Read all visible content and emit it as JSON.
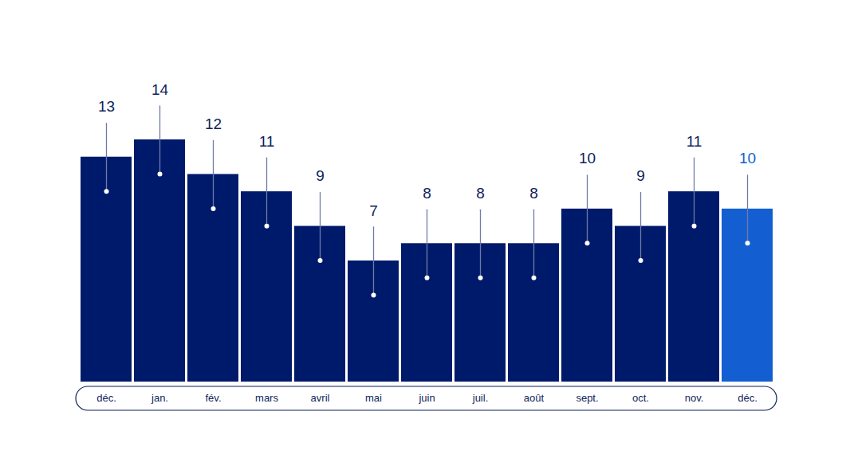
{
  "chart_data": {
    "type": "bar",
    "categories": [
      "déc.",
      "jan.",
      "fév.",
      "mars",
      "avril",
      "mai",
      "juin",
      "juil.",
      "août",
      "sept.",
      "oct.",
      "nov.",
      "déc."
    ],
    "values": [
      13,
      14,
      12,
      11,
      9,
      7,
      8,
      8,
      8,
      10,
      9,
      11,
      10
    ],
    "colors": [
      "#001a6b",
      "#001a6b",
      "#001a6b",
      "#001a6b",
      "#001a6b",
      "#001a6b",
      "#001a6b",
      "#001a6b",
      "#001a6b",
      "#001a6b",
      "#001a6b",
      "#001a6b",
      "#135fd1"
    ],
    "ylim": [
      0,
      14
    ],
    "data_labels": true,
    "tick_labels": "x"
  }
}
